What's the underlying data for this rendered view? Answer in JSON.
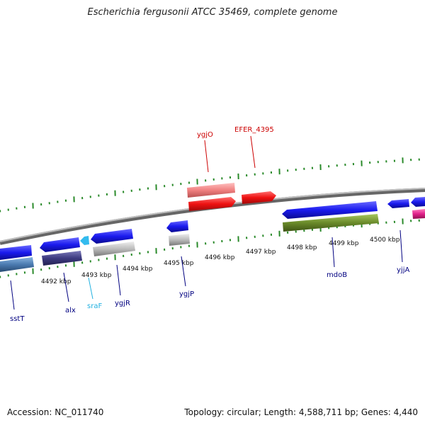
{
  "title": "Escherichia fergusonii ATCC 35469, complete genome",
  "footer": {
    "accession": "Accession: NC_011740",
    "summary": "Topology: circular; Length: 4,588,711 bp; Genes: 4,440"
  },
  "kbp_labels": [
    "4492 kbp",
    "4493 kbp",
    "4494 kbp",
    "4495 kbp",
    "4496 kbp",
    "4497 kbp",
    "4498 kbp",
    "4499 kbp",
    "4500 kbp"
  ],
  "gene_labels": [
    {
      "name": "sstT",
      "color": "#000080"
    },
    {
      "name": "alx",
      "color": "#000080"
    },
    {
      "name": "sraF",
      "color": "#20b0e0"
    },
    {
      "name": "ygjR",
      "color": "#000080"
    },
    {
      "name": "ygjP",
      "color": "#000080"
    },
    {
      "name": "mdoB",
      "color": "#000080"
    },
    {
      "name": "yjjA",
      "color": "#000080"
    },
    {
      "name": "ygjO",
      "color": "#cc0000"
    },
    {
      "name": "EFER_4395",
      "color": "#cc0000"
    }
  ],
  "colors": {
    "backbone": "#888888",
    "tick": "#2a8a2a",
    "cds_blue": "#1a1aee",
    "cds_red": "#ee1111",
    "rna_pink": "#f08080",
    "ncrna_cyan": "#33bbee",
    "olive": "#6a8a2a",
    "darkpurple": "#3d3a80",
    "steel": "#4a7ab0",
    "grey": "#b8b8b8",
    "magenta": "#e0208a"
  }
}
